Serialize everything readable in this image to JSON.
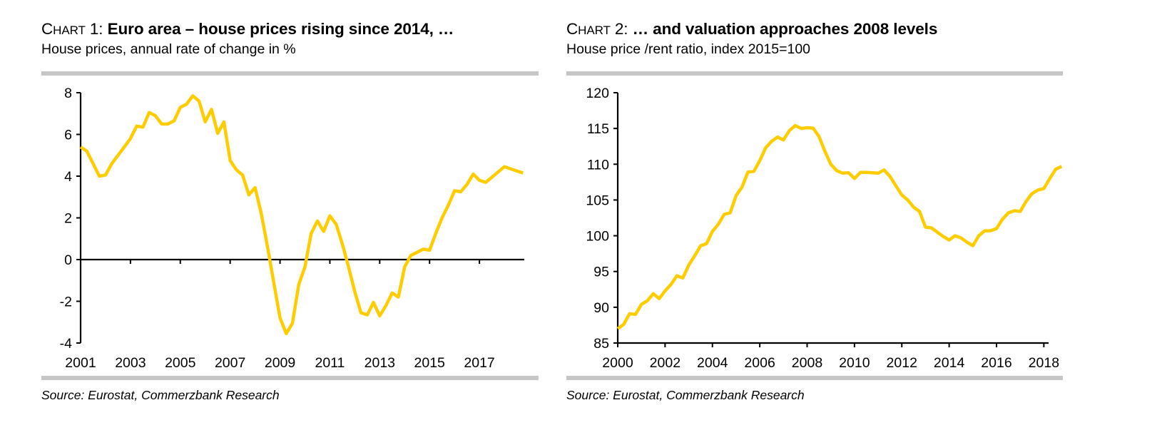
{
  "colors": {
    "line": "#FFCC00",
    "axis": "#000000",
    "rule": "#C6C6C6"
  },
  "chart_data": [
    {
      "type": "line",
      "chart_label_prefix": "C",
      "chart_label_small": "HART",
      "chart_label_number": " 1: ",
      "title": "Euro area – house prices rising since 2014, …",
      "subtitle": "House prices, annual rate of change in %",
      "source": "Source: Eurostat, Commerzbank Research",
      "xlabel": "",
      "ylabel": "",
      "frequency": "quarterly",
      "x_start": 2001.0,
      "x_step": 0.25,
      "xlim": [
        2001,
        2018.8
      ],
      "ylim": [
        -4,
        8
      ],
      "yticks": [
        -4,
        -2,
        0,
        2,
        4,
        6,
        8
      ],
      "ytick_labels": [
        "-4",
        "-2",
        "0",
        "2",
        "4",
        "6",
        "8"
      ],
      "xticks": [
        2001,
        2003,
        2005,
        2007,
        2009,
        2011,
        2013,
        2015,
        2017
      ],
      "xtick_labels": [
        "2001",
        "2003",
        "2005",
        "2007",
        "2009",
        "2011",
        "2013",
        "2015",
        "2017"
      ],
      "x_axis_at": 0,
      "grid": false,
      "legend": "none",
      "series": [
        {
          "name": "House prices, annual rate of change",
          "values": [
            5.4,
            5.2,
            4.6,
            4.0,
            4.05,
            4.6,
            5.0,
            5.4,
            5.8,
            6.4,
            6.35,
            7.05,
            6.9,
            6.5,
            6.5,
            6.65,
            7.3,
            7.45,
            7.85,
            7.6,
            6.6,
            7.2,
            6.05,
            6.6,
            4.75,
            4.3,
            4.05,
            3.1,
            3.45,
            2.2,
            0.6,
            -1.1,
            -2.8,
            -3.55,
            -3.05,
            -1.2,
            -0.35,
            1.25,
            1.85,
            1.35,
            2.1,
            1.7,
            0.75,
            -0.35,
            -1.55,
            -2.55,
            -2.65,
            -2.05,
            -2.7,
            -2.2,
            -1.6,
            -1.8,
            -0.35,
            0.2,
            0.35,
            0.5,
            0.45,
            1.25,
            2.0,
            2.6,
            3.3,
            3.25,
            3.6,
            4.1,
            3.8,
            3.7,
            3.95,
            4.2,
            4.45,
            4.35,
            4.25,
            4.15
          ]
        }
      ]
    },
    {
      "type": "line",
      "chart_label_prefix": "C",
      "chart_label_small": "HART",
      "chart_label_number": " 2: ",
      "title": "… and valuation approaches 2008 levels",
      "subtitle": "House price /rent ratio, index 2015=100",
      "source": "Source: Eurostat, Commerzbank Research",
      "xlabel": "",
      "ylabel": "",
      "frequency": "quarterly",
      "x_start": 2000.0,
      "x_step": 0.25,
      "xlim": [
        2000,
        2018.2
      ],
      "ylim": [
        85,
        120
      ],
      "yticks": [
        85,
        90,
        95,
        100,
        105,
        110,
        115,
        120
      ],
      "ytick_labels": [
        "85",
        "90",
        "95",
        "100",
        "105",
        "110",
        "115",
        "120"
      ],
      "xticks": [
        2000,
        2002,
        2004,
        2006,
        2008,
        2010,
        2012,
        2014,
        2016,
        2018
      ],
      "xtick_labels": [
        "2000",
        "2002",
        "2004",
        "2006",
        "2008",
        "2010",
        "2012",
        "2014",
        "2016",
        "2018"
      ],
      "x_axis_at": 85,
      "grid": false,
      "legend": "none",
      "series": [
        {
          "name": "House price / rent ratio",
          "values": [
            87.0,
            87.6,
            89.1,
            89.0,
            90.4,
            90.9,
            91.9,
            91.2,
            92.3,
            93.2,
            94.4,
            94.1,
            95.9,
            97.2,
            98.6,
            98.9,
            100.6,
            101.6,
            103.0,
            103.2,
            105.6,
            106.8,
            108.9,
            109.0,
            110.5,
            112.3,
            113.2,
            113.8,
            113.4,
            114.7,
            115.4,
            115.0,
            115.1,
            115.05,
            113.9,
            111.8,
            110.0,
            109.1,
            108.75,
            108.8,
            108.0,
            108.85,
            108.85,
            108.8,
            108.75,
            109.2,
            108.3,
            107.0,
            105.7,
            105.0,
            104.0,
            103.4,
            101.2,
            101.1,
            100.5,
            99.9,
            99.4,
            100.0,
            99.7,
            99.1,
            98.6,
            100.0,
            100.7,
            100.7,
            101.0,
            102.3,
            103.2,
            103.5,
            103.4,
            104.8,
            105.9,
            106.4,
            106.6,
            108.0,
            109.3,
            109.7
          ]
        }
      ]
    }
  ]
}
